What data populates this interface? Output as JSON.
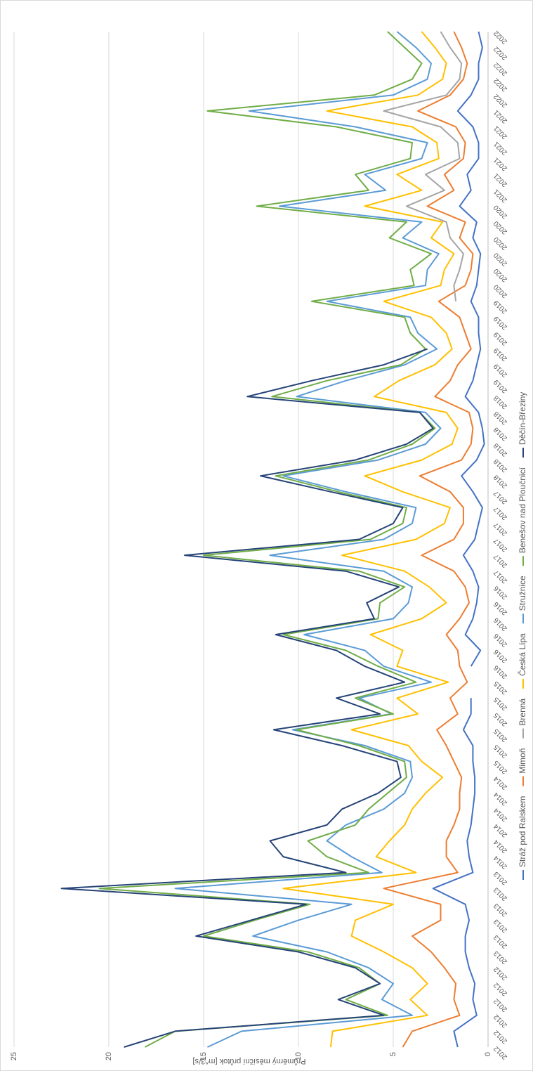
{
  "chart_data": {
    "type": "line",
    "y_label": "Průměrný měsíční průtok [m^3/s]",
    "categories": [
      "2012",
      "2012",
      "2012",
      "2012",
      "2012",
      "2012",
      "2013",
      "2013",
      "2013",
      "2013",
      "2013",
      "2013",
      "2014",
      "2014",
      "2014",
      "2014",
      "2014",
      "2014",
      "2015",
      "2015",
      "2015",
      "2015",
      "2015",
      "2015",
      "2016",
      "2016",
      "2016",
      "2016",
      "2016",
      "2016",
      "2017",
      "2017",
      "2017",
      "2017",
      "2017",
      "2017",
      "2018",
      "2018",
      "2018",
      "2018",
      "2018",
      "2018",
      "2019",
      "2019",
      "2019",
      "2019",
      "2019",
      "2019",
      "2020",
      "2020",
      "2020",
      "2020",
      "2020",
      "2020",
      "2021",
      "2021",
      "2021",
      "2021",
      "2021",
      "2021",
      "2022",
      "2022",
      "2022",
      "2022",
      "2022"
    ],
    "ylim": [
      0,
      25
    ],
    "yticks": [
      0,
      5,
      10,
      15,
      20,
      25
    ],
    "grid": true,
    "legend": "bottom",
    "series": [
      {
        "name": "Stráž pod Ralskem",
        "color": "#4472c4",
        "values": [
          1.6,
          1.8,
          0.6,
          0.8,
          0.7,
          1,
          1.2,
          1.2,
          1,
          1.2,
          2.9,
          0.8,
          1,
          1.1,
          0.9,
          0.8,
          0.7,
          0.7,
          0.8,
          0.8,
          1.3,
          0.9,
          0.9,
          null,
          0.9,
          0.4,
          1.2,
          0.8,
          0.6,
          0.5,
          0.8,
          1.3,
          0.7,
          0.5,
          0.3,
          0.8,
          1.4,
          0.6,
          0.2,
          0.3,
          0.5,
          1.2,
          0.8,
          0.6,
          0.4,
          0.5,
          0.5,
          0.9,
          0.6,
          0.5,
          0.4,
          0.8,
          0.6,
          1.5,
          0.9,
          1.1,
          0.5,
          0.5,
          0.8,
          1.6,
          0.9,
          0.5,
          0.5,
          0.3,
          0.5
        ]
      },
      {
        "name": "Mimoň",
        "color": "#ed7d31",
        "values": [
          4.5,
          4,
          1.5,
          1.8,
          1.7,
          2.3,
          3,
          4,
          2.5,
          2.5,
          5.5,
          1.6,
          2.2,
          2.2,
          1.8,
          1.5,
          1.5,
          1.4,
          1.8,
          2.2,
          2.7,
          1.6,
          2,
          1.1,
          1.5,
          1.6,
          2.2,
          1.5,
          1,
          1.2,
          1.8,
          3.5,
          1.8,
          1.3,
          1.3,
          2,
          3.6,
          1.4,
          0.9,
          0.8,
          1,
          2.8,
          2,
          1.6,
          0.9,
          1.2,
          1.5,
          2.6,
          1.2,
          0.9,
          0.8,
          1.5,
          1.2,
          3.2,
          1.8,
          2.3,
          1.3,
          1.2,
          1.7,
          3.7,
          2,
          1.3,
          1.1,
          1.4,
          1.8
        ]
      },
      {
        "name": "Brenná",
        "color": "#a5a5a5",
        "values": [
          null,
          null,
          null,
          null,
          null,
          null,
          null,
          null,
          null,
          null,
          null,
          null,
          null,
          null,
          null,
          null,
          null,
          null,
          null,
          null,
          null,
          null,
          null,
          null,
          null,
          null,
          null,
          null,
          null,
          null,
          null,
          null,
          null,
          null,
          null,
          null,
          null,
          null,
          null,
          null,
          null,
          null,
          null,
          null,
          null,
          null,
          null,
          1.7,
          1.8,
          1.5,
          1.3,
          2,
          2.2,
          4.3,
          2.3,
          3.3,
          1.5,
          1.6,
          2.5,
          5.5,
          2.2,
          1.5,
          1.4,
          2,
          2.5
        ]
      },
      {
        "name": "Česká Lípa",
        "color": "#ffc000",
        "values": [
          8.3,
          8.2,
          3.2,
          4.1,
          3.2,
          4,
          5.5,
          7.2,
          7,
          5,
          10.8,
          3.8,
          5.9,
          5.2,
          4.4,
          4,
          3.3,
          2.4,
          3.5,
          4.2,
          7.2,
          3.7,
          4.8,
          2.1,
          4.8,
          4.5,
          6.2,
          3.5,
          2.2,
          3.1,
          4.4,
          7.7,
          3.8,
          2.3,
          2,
          4.5,
          6.5,
          3.5,
          1.9,
          1.6,
          2.2,
          6,
          4.7,
          2.8,
          1.9,
          2.2,
          3,
          5.5,
          2.5,
          2.3,
          1.8,
          3,
          2.4,
          6.5,
          3.5,
          4.8,
          2.6,
          2.7,
          4,
          8.5,
          3.7,
          2.4,
          2.2,
          2.8,
          3.5
        ]
      },
      {
        "name": "Stružnice",
        "color": "#5b9bd5",
        "values": [
          14.8,
          13,
          4,
          5.6,
          5,
          6.3,
          8.5,
          12.4,
          10,
          7.2,
          16.5,
          5.6,
          7.2,
          8.5,
          7.5,
          5.5,
          4.4,
          4,
          4.1,
          6.5,
          10.3,
          5.1,
          6.8,
          3,
          5.5,
          6.5,
          9.7,
          5,
          4.2,
          4,
          5.5,
          11.5,
          5.5,
          4,
          3.8,
          7.5,
          10.8,
          5.8,
          3.3,
          2.5,
          3.3,
          10.1,
          7.5,
          4.4,
          2.7,
          3.7,
          4.1,
          8.5,
          3.3,
          3.2,
          2.6,
          4.5,
          3.5,
          11,
          5.4,
          6.5,
          3.5,
          3.2,
          7,
          12.6,
          5,
          3.2,
          3,
          3.8,
          4.8
        ]
      },
      {
        "name": "Benešov nad Ploučnicí",
        "color": "#70ad47",
        "values": [
          18.1,
          16.5,
          5.3,
          7.5,
          5.7,
          6.8,
          9.5,
          15,
          12.3,
          9.4,
          20.5,
          6.3,
          8.5,
          9.5,
          7,
          6.3,
          5.3,
          4.3,
          4.4,
          6.8,
          10.1,
          5,
          7,
          3.8,
          5.8,
          7.5,
          10.8,
          5.8,
          5.7,
          4.4,
          6.8,
          15,
          6.2,
          4.5,
          4.3,
          7.9,
          11.2,
          6.3,
          4,
          2.8,
          3.6,
          11.4,
          8.5,
          4.6,
          3.3,
          4.1,
          4.4,
          9.3,
          3.9,
          4.1,
          3,
          5.2,
          4.3,
          12.2,
          6.3,
          7,
          4.1,
          4,
          8,
          14.8,
          6,
          4,
          3.5,
          4.4,
          5.3
        ]
      },
      {
        "name": "Děčín-Březiny",
        "color": "#264478",
        "values": [
          19.2,
          16.5,
          5.5,
          7.9,
          5.7,
          7,
          10,
          15.4,
          12.5,
          9.6,
          22.5,
          7.5,
          10.8,
          11.5,
          8.5,
          7.7,
          5.8,
          4.6,
          4.8,
          7.7,
          11.3,
          5.7,
          8,
          4.4,
          6.5,
          8,
          11.2,
          6,
          6.4,
          4.7,
          7.5,
          16,
          6.8,
          5,
          4.5,
          8.3,
          12,
          7,
          4.3,
          2.9,
          3.6,
          12.7,
          9.3,
          5.5,
          3.2,
          null,
          null,
          null,
          null,
          null,
          null,
          null,
          null,
          null,
          null,
          null,
          null,
          null,
          null,
          null,
          null,
          null,
          null,
          null,
          null
        ]
      }
    ]
  }
}
